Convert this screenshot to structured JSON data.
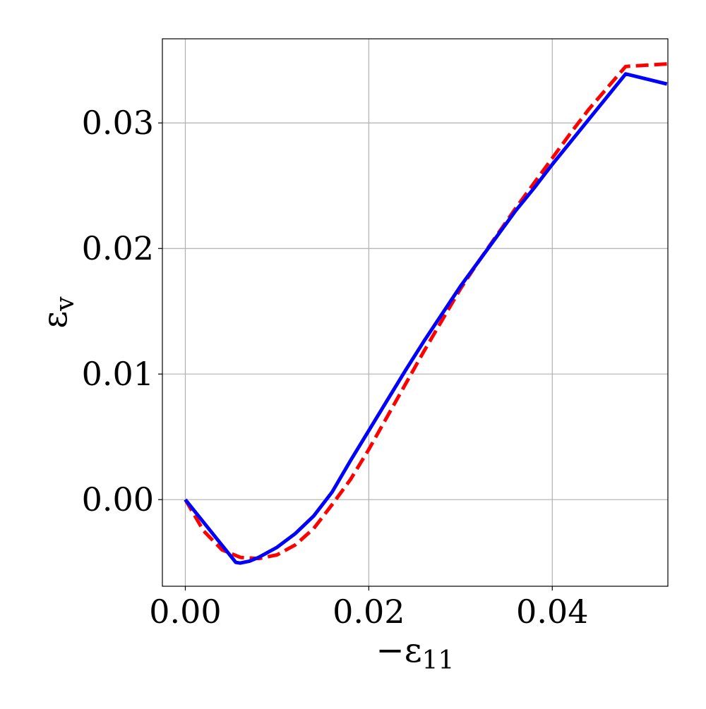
{
  "chart_data": {
    "type": "line",
    "xlabel_main": "−ε",
    "xlabel_sub": "11",
    "ylabel_main": "ε",
    "ylabel_sub": "v",
    "xlim": [
      -0.0025,
      0.0526
    ],
    "ylim": [
      -0.0069,
      0.0367
    ],
    "x_ticks": [
      0.0,
      0.02,
      0.04
    ],
    "x_tick_labels": [
      "0.00",
      "0.02",
      "0.04"
    ],
    "y_ticks": [
      0.0,
      0.01,
      0.02,
      0.03
    ],
    "y_tick_labels": [
      "0.00",
      "0.01",
      "0.02",
      "0.03"
    ],
    "grid": true,
    "series": [
      {
        "color": "#0000ff",
        "style": "solid",
        "x": [
          0.0,
          0.0055,
          0.006,
          0.007,
          0.008,
          0.01,
          0.012,
          0.014,
          0.016,
          0.018,
          0.02,
          0.022,
          0.024,
          0.026,
          0.028,
          0.03,
          0.032,
          0.034,
          0.036,
          0.038,
          0.04,
          0.042,
          0.044,
          0.046,
          0.048,
          0.0525
        ],
        "y": [
          0.0,
          -0.005,
          -0.00505,
          -0.0049,
          -0.0046,
          -0.0038,
          -0.0027,
          -0.0013,
          0.0006,
          0.0031,
          0.0055,
          0.0079,
          0.0103,
          0.0126,
          0.0148,
          0.017,
          0.019,
          0.021,
          0.023,
          0.0248,
          0.0267,
          0.0285,
          0.0303,
          0.0321,
          0.0339,
          0.0331
        ]
      },
      {
        "color": "#ff0000",
        "style": "dashed",
        "x": [
          0.0,
          0.002,
          0.004,
          0.006,
          0.008,
          0.01,
          0.012,
          0.014,
          0.016,
          0.018,
          0.02,
          0.022,
          0.024,
          0.026,
          0.028,
          0.03,
          0.032,
          0.034,
          0.036,
          0.038,
          0.04,
          0.042,
          0.044,
          0.046,
          0.048,
          0.0525
        ],
        "y": [
          0.0,
          -0.0025,
          -0.004,
          -0.0046,
          -0.0047,
          -0.0044,
          -0.0036,
          -0.0023,
          -0.0004,
          0.0016,
          0.004,
          0.0066,
          0.0092,
          0.0118,
          0.0143,
          0.0168,
          0.019,
          0.0211,
          0.0232,
          0.0252,
          0.0272,
          0.0292,
          0.0311,
          0.0328,
          0.0345,
          0.0347
        ]
      }
    ]
  }
}
